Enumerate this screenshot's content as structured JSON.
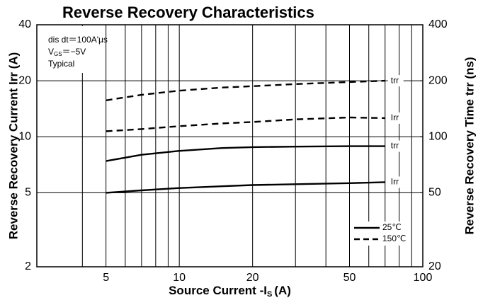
{
  "chart_data": {
    "type": "line",
    "title": "Reverse Recovery Characteristics",
    "x_label": {
      "main": "Source Current -I",
      "sub": "S",
      "rest": "(A)"
    },
    "y_label": "Reverse Recovery Current Irr (A)",
    "y2_label": "Reverse Recovery Time trr (ns)",
    "annotations": [
      {
        "main": "dis dt＝100A'μs"
      },
      {
        "main": "V",
        "sub": "GS",
        "rest": "＝−5V"
      },
      {
        "main": "Typical"
      }
    ],
    "log_x": true,
    "log_y": true,
    "grid": true,
    "x": [
      5,
      7,
      10,
      15,
      20,
      30,
      50,
      70
    ],
    "xlim": [
      2.6,
      100
    ],
    "xticks": [
      5,
      10,
      20,
      50,
      100
    ],
    "xminor_ticks": [
      4,
      6,
      7,
      8,
      9,
      30,
      40,
      60,
      70,
      80,
      90
    ],
    "ylim": [
      2,
      40
    ],
    "yticks": [
      2,
      5,
      10,
      20,
      40
    ],
    "y2lim": [
      20,
      400
    ],
    "y2ticks": [
      20,
      50,
      100,
      200,
      400
    ],
    "legend_position": "lower right",
    "legend": [
      {
        "label": "25℃",
        "dashed": false
      },
      {
        "label": "150℃",
        "dashed": true
      }
    ],
    "series": [
      {
        "name": "trr",
        "color": "#000000",
        "dashed": true,
        "axis": "y2",
        "values": [
          157,
          168,
          177,
          184,
          187,
          192,
          197,
          200
        ]
      },
      {
        "name": "Irr",
        "color": "#000000",
        "dashed": true,
        "axis": "y",
        "values": [
          10.7,
          11.0,
          11.4,
          11.8,
          12.0,
          12.4,
          12.7,
          12.6
        ]
      },
      {
        "name": "trr",
        "color": "#000000",
        "dashed": false,
        "axis": "y2",
        "values": [
          74,
          80,
          84,
          87,
          88,
          88.5,
          89,
          89
        ]
      },
      {
        "name": "Irr",
        "color": "#000000",
        "dashed": false,
        "axis": "y",
        "values": [
          5.0,
          5.15,
          5.3,
          5.42,
          5.5,
          5.56,
          5.63,
          5.7
        ]
      }
    ]
  }
}
